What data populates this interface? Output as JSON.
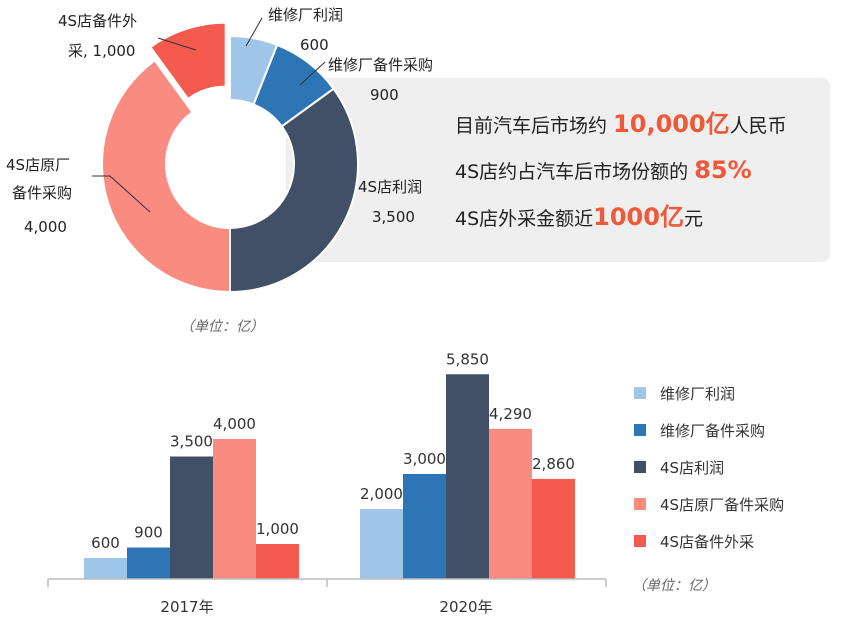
{
  "chart_data": [
    {
      "type": "pie",
      "subtype": "donut",
      "unit_label": "（单位：亿）",
      "slices": [
        {
          "name": "维修厂利润",
          "value": 600,
          "label_name": "维修厂利润",
          "label_value": "600",
          "color": "#9fc5e8"
        },
        {
          "name": "维修厂备件采购",
          "value": 900,
          "label_name": "维修厂备件采购",
          "label_value": "900",
          "color": "#2e75b6"
        },
        {
          "name": "4S店利润",
          "value": 3500,
          "label_name": "4S店利润",
          "label_value": "3,500",
          "color": "#415066"
        },
        {
          "name": "4S店原厂备件采购",
          "value": 4000,
          "label_name_lines": [
            "4S店原厂",
            "备件采购"
          ],
          "label_value": "4,000",
          "color": "#f98b80"
        },
        {
          "name": "4S店备件外采",
          "value": 1000,
          "label_name_lines": [
            "4S店备件外",
            "采, 1,000"
          ],
          "color": "#f55a4e",
          "exploded": true
        }
      ]
    },
    {
      "type": "bar",
      "unit_label": "（单位：亿）",
      "categories": [
        "2017年",
        "2020年"
      ],
      "ylim": [
        0,
        6200
      ],
      "series": [
        {
          "name": "维修厂利润",
          "values": [
            600,
            2000
          ],
          "labels": [
            "600",
            "2,000"
          ],
          "color": "#9fc5e8"
        },
        {
          "name": "维修厂备件采购",
          "values": [
            900,
            3000
          ],
          "labels": [
            "900",
            "3,000"
          ],
          "color": "#2e75b6"
        },
        {
          "name": "4S店利润",
          "values": [
            3500,
            5850
          ],
          "labels": [
            "3,500",
            "5,850"
          ],
          "color": "#415066"
        },
        {
          "name": "4S店原厂备件采购",
          "values": [
            4000,
            4290
          ],
          "labels": [
            "4,000",
            "4,290"
          ],
          "color": "#f98b80"
        },
        {
          "name": "4S店备件外采",
          "values": [
            1000,
            2860
          ],
          "labels": [
            "1,000",
            "2,860"
          ],
          "color": "#f55a4e"
        }
      ]
    }
  ],
  "statements": [
    {
      "pre": "目前汽车后市场约 ",
      "hl": "10,000亿",
      "post": "人民币"
    },
    {
      "pre": "4S店约占汽车后市场份额的 ",
      "hl": "85%",
      "post": ""
    },
    {
      "pre": "4S店外采金额近",
      "hl": "1000亿",
      "post": "元"
    }
  ]
}
